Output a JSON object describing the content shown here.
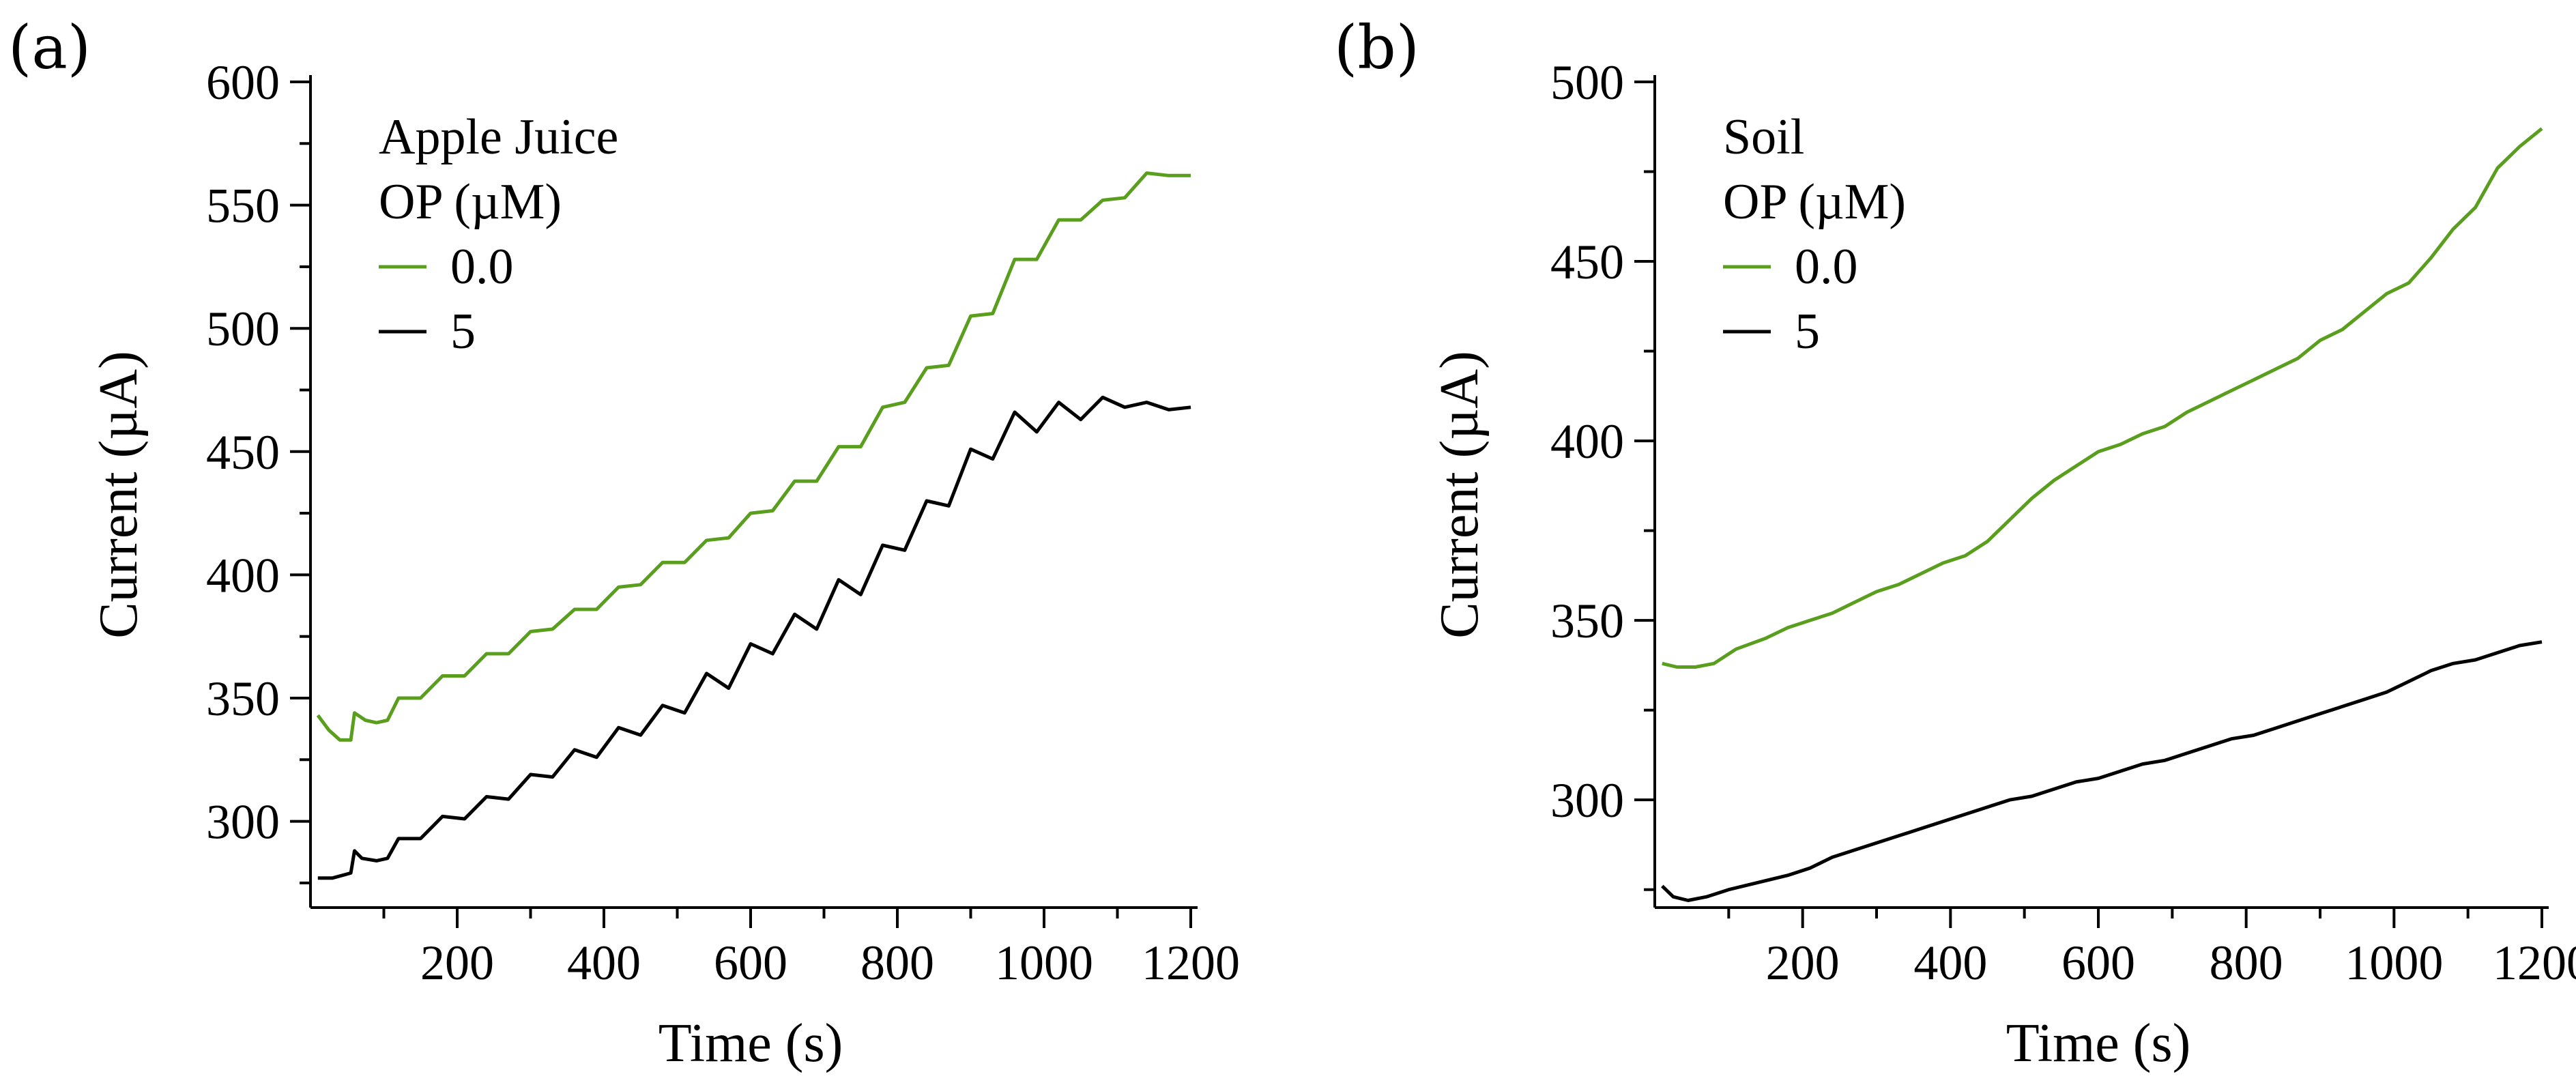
{
  "chart_data": [
    {
      "type": "line",
      "panel_label": "(a)",
      "legend_title": [
        "Apple Juice",
        "OP (µM)"
      ],
      "xlabel": "Time (s)",
      "ylabel": "Current (µA)",
      "xlim": [
        0,
        1200
      ],
      "ylim": [
        265,
        600
      ],
      "xticks": [
        200,
        400,
        600,
        800,
        1000,
        1200
      ],
      "yticks": [
        300,
        350,
        400,
        450,
        500,
        550,
        600
      ],
      "series": [
        {
          "name": "0.0",
          "color": "#5a9e1e",
          "x": [
            10,
            25,
            40,
            55,
            60,
            75,
            90,
            105,
            120,
            150,
            180,
            210,
            240,
            270,
            300,
            330,
            360,
            390,
            420,
            450,
            480,
            510,
            540,
            570,
            600,
            630,
            660,
            690,
            720,
            750,
            780,
            810,
            840,
            870,
            900,
            930,
            960,
            990,
            1020,
            1050,
            1080,
            1110,
            1140,
            1170,
            1200
          ],
          "y": [
            343,
            337,
            333,
            333,
            344,
            341,
            340,
            341,
            350,
            350,
            359,
            359,
            368,
            368,
            377,
            378,
            386,
            386,
            395,
            396,
            405,
            405,
            414,
            415,
            425,
            426,
            438,
            438,
            452,
            452,
            468,
            470,
            484,
            485,
            505,
            506,
            528,
            528,
            544,
            544,
            552,
            553,
            563,
            562,
            562
          ]
        },
        {
          "name": "5",
          "color": "#000000",
          "x": [
            10,
            30,
            55,
            60,
            70,
            90,
            105,
            120,
            150,
            180,
            210,
            240,
            270,
            300,
            330,
            360,
            390,
            420,
            450,
            480,
            510,
            540,
            570,
            600,
            630,
            660,
            690,
            720,
            750,
            780,
            810,
            840,
            870,
            900,
            930,
            960,
            990,
            1020,
            1050,
            1080,
            1110,
            1140,
            1170,
            1200
          ],
          "y": [
            277,
            277,
            279,
            288,
            285,
            284,
            285,
            293,
            293,
            302,
            301,
            310,
            309,
            319,
            318,
            329,
            326,
            338,
            335,
            347,
            344,
            360,
            354,
            372,
            368,
            384,
            378,
            398,
            392,
            412,
            410,
            430,
            428,
            451,
            447,
            466,
            458,
            470,
            463,
            472,
            468,
            470,
            467,
            468
          ]
        }
      ]
    },
    {
      "type": "line",
      "panel_label": "(b)",
      "legend_title": [
        "Soil",
        "OP (µM)"
      ],
      "xlabel": "Time (s)",
      "ylabel": "Current (µA)",
      "xlim": [
        0,
        1200
      ],
      "ylim": [
        270,
        500
      ],
      "xticks": [
        200,
        400,
        600,
        800,
        1000,
        1200
      ],
      "yticks": [
        300,
        350,
        400,
        450,
        500
      ],
      "series": [
        {
          "name": "0.0",
          "color": "#5a9e1e",
          "x": [
            10,
            30,
            55,
            80,
            110,
            150,
            180,
            210,
            240,
            270,
            300,
            330,
            360,
            390,
            420,
            450,
            480,
            510,
            540,
            570,
            600,
            630,
            660,
            690,
            720,
            750,
            780,
            810,
            840,
            870,
            900,
            930,
            960,
            990,
            1020,
            1050,
            1080,
            1110,
            1140,
            1170,
            1200
          ],
          "y": [
            338,
            337,
            337,
            338,
            342,
            345,
            348,
            350,
            352,
            355,
            358,
            360,
            363,
            366,
            368,
            372,
            378,
            384,
            389,
            393,
            397,
            399,
            402,
            404,
            408,
            411,
            414,
            417,
            420,
            423,
            428,
            431,
            436,
            441,
            444,
            451,
            459,
            465,
            476,
            482,
            487
          ]
        },
        {
          "name": "5",
          "color": "#000000",
          "x": [
            10,
            25,
            45,
            70,
            100,
            140,
            180,
            210,
            240,
            270,
            300,
            330,
            360,
            390,
            420,
            450,
            480,
            510,
            540,
            570,
            600,
            630,
            660,
            690,
            720,
            750,
            780,
            810,
            840,
            870,
            900,
            930,
            960,
            990,
            1020,
            1050,
            1080,
            1110,
            1140,
            1170,
            1200
          ],
          "y": [
            276,
            273,
            272,
            273,
            275,
            277,
            279,
            281,
            284,
            286,
            288,
            290,
            292,
            294,
            296,
            298,
            300,
            301,
            303,
            305,
            306,
            308,
            310,
            311,
            313,
            315,
            317,
            318,
            320,
            322,
            324,
            326,
            328,
            330,
            333,
            336,
            338,
            339,
            341,
            343,
            344
          ]
        }
      ]
    }
  ]
}
